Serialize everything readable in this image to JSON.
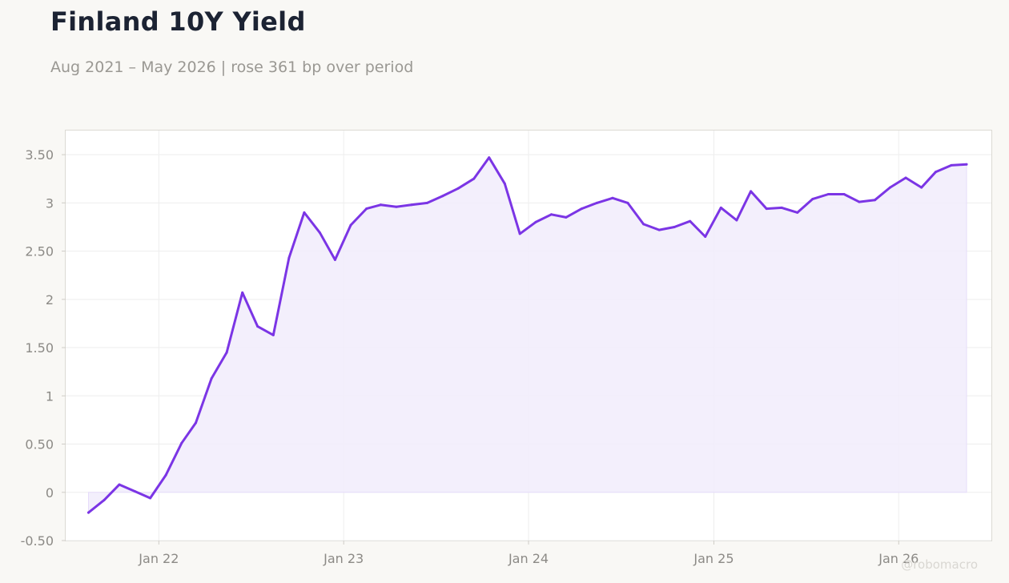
{
  "title": "Finland 10Y Yield",
  "subtitle": "Aug 2021 – May 2026 | rose 361 bp over period",
  "watermark": "@robomacro",
  "colors": {
    "line": "#7b35e5",
    "fill": "#f1ecfc",
    "grid": "#eeeeee",
    "title": "#1c2333",
    "muted": "#9a9893"
  },
  "chart_data": {
    "type": "area",
    "title": "Finland 10Y Yield",
    "xlabel": "",
    "ylabel": "",
    "grid": true,
    "legend": "none",
    "ylim": [
      -0.5,
      3.75
    ],
    "xlim": [
      "2021-07-01",
      "2026-07-03"
    ],
    "y_ticks": [
      {
        "value": -0.5,
        "label": "-0.50"
      },
      {
        "value": 0,
        "label": "0"
      },
      {
        "value": 0.5,
        "label": "0.50"
      },
      {
        "value": 1,
        "label": "1"
      },
      {
        "value": 1.5,
        "label": "1.50"
      },
      {
        "value": 2,
        "label": "2"
      },
      {
        "value": 2.5,
        "label": "2.50"
      },
      {
        "value": 3,
        "label": "3"
      },
      {
        "value": 3.5,
        "label": "3.50"
      }
    ],
    "x_ticks": [
      {
        "value": "2022-01-01",
        "label": "Jan 22"
      },
      {
        "value": "2023-01-01",
        "label": "Jan 23"
      },
      {
        "value": "2024-01-01",
        "label": "Jan 24"
      },
      {
        "value": "2025-01-01",
        "label": "Jan 25"
      },
      {
        "value": "2026-01-01",
        "label": "Jan 26"
      }
    ],
    "series": [
      {
        "x": [
          "2021-08",
          "2021-09",
          "2021-10",
          "2021-11",
          "2021-12",
          "2022-01",
          "2022-02",
          "2022-03",
          "2022-04",
          "2022-05",
          "2022-06",
          "2022-07",
          "2022-08",
          "2022-09",
          "2022-10",
          "2022-11",
          "2022-12",
          "2023-01",
          "2023-02",
          "2023-03",
          "2023-04",
          "2023-05",
          "2023-06",
          "2023-07",
          "2023-08",
          "2023-09",
          "2023-10",
          "2023-11",
          "2023-12",
          "2024-01",
          "2024-02",
          "2024-03",
          "2024-04",
          "2024-05",
          "2024-06",
          "2024-07",
          "2024-08",
          "2024-09",
          "2024-10",
          "2024-11",
          "2024-12",
          "2025-01",
          "2025-02",
          "2025-03",
          "2025-04",
          "2025-05",
          "2025-06",
          "2025-07",
          "2025-08",
          "2025-09",
          "2025-10",
          "2025-11",
          "2025-12",
          "2026-01",
          "2026-02",
          "2026-03",
          "2026-04",
          "2026-05"
        ],
        "values": [
          -0.21,
          -0.08,
          0.08,
          0.01,
          -0.06,
          0.18,
          0.51,
          0.72,
          1.18,
          1.45,
          2.07,
          1.72,
          1.63,
          2.43,
          2.9,
          2.69,
          2.41,
          2.77,
          2.94,
          2.98,
          2.96,
          2.98,
          3.0,
          3.07,
          3.15,
          3.25,
          3.47,
          3.2,
          2.68,
          2.8,
          2.88,
          2.85,
          2.94,
          3.0,
          3.05,
          3.0,
          2.78,
          2.72,
          2.75,
          2.81,
          2.65,
          2.95,
          2.82,
          3.12,
          2.94,
          2.95,
          2.9,
          3.04,
          3.09,
          3.09,
          3.01,
          3.03,
          3.16,
          3.26,
          3.16,
          3.32,
          3.39,
          3.4
        ]
      }
    ]
  }
}
